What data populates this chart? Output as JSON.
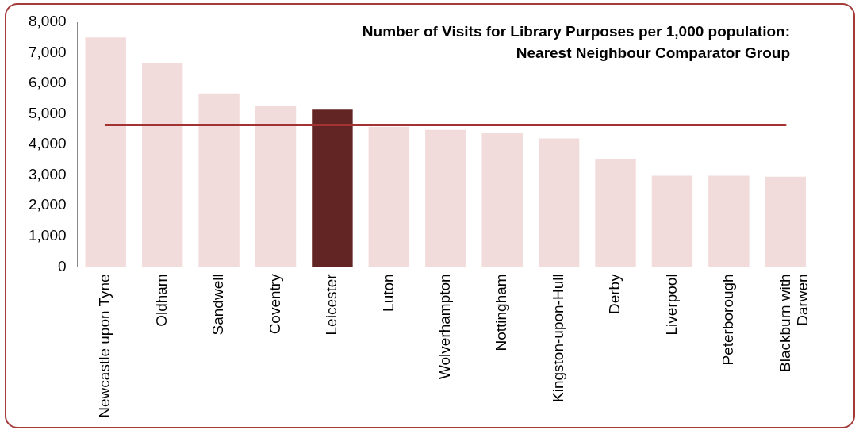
{
  "chart_data": {
    "type": "bar",
    "title": "Number of Visits for Library Purposes per 1,000 population: Nearest Neighbour Comparator Group",
    "categories": [
      "Newcastle upon Tyne",
      "Oldham",
      "Sandwell",
      "Coventry",
      "Leicester",
      "Luton",
      "Wolverhampton",
      "Nottingham",
      "Kingston-upon-Hull",
      "Derby",
      "Liverpool",
      "Peterborough",
      "Blackburn with Darwen"
    ],
    "values": [
      7500,
      6680,
      5670,
      5270,
      5140,
      4580,
      4480,
      4390,
      4200,
      3540,
      2980,
      2980,
      2950
    ],
    "colors": [
      "#f2dcdb",
      "#f2dcdb",
      "#f2dcdb",
      "#f2dcdb",
      "#632523",
      "#f2dcdb",
      "#f2dcdb",
      "#f2dcdb",
      "#f2dcdb",
      "#f2dcdb",
      "#f2dcdb",
      "#f2dcdb",
      "#f2dcdb"
    ],
    "ylim": [
      0,
      8000
    ],
    "yticks": [
      0,
      {
        "value": 1000,
        "label": "1,000"
      },
      {
        "value": 2000,
        "label": "2,000"
      },
      {
        "value": 3000,
        "label": "3,000"
      },
      {
        "value": 4000,
        "label": "4,000"
      },
      {
        "value": 5000,
        "label": "5,000"
      },
      {
        "value": 6000,
        "label": "6,000"
      },
      {
        "value": 7000,
        "label": "7,000"
      },
      {
        "value": 8000,
        "label": "8,000"
      }
    ],
    "grid": false,
    "legend": false,
    "ref_lines": [
      {
        "axis": "y",
        "value": 4640,
        "color": "#a33333"
      }
    ]
  }
}
